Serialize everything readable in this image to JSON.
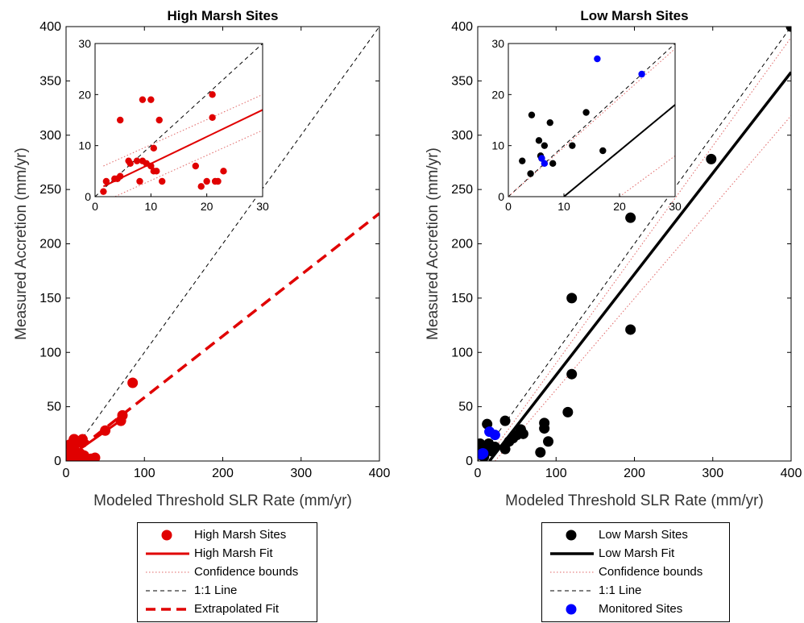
{
  "colors": {
    "high": "#e00000",
    "low": "#000000",
    "monitored": "#0000ff",
    "bounds": "#e06666",
    "oneone": "#000000"
  },
  "axes_labels": {
    "xlabel": "Modeled Threshold SLR Rate (mm/yr)",
    "ylabel": "Measured Accretion (mm/yr)"
  },
  "chart_data": [
    {
      "id": "high",
      "type": "scatter",
      "title": "High Marsh Sites",
      "xlabel": "Modeled Threshold SLR Rate (mm/yr)",
      "ylabel": "Measured Accretion (mm/yr)",
      "xlim": [
        0,
        400
      ],
      "ylim": [
        0,
        400
      ],
      "xticks": [
        0,
        100,
        200,
        300,
        400
      ],
      "yticks": [
        0,
        50,
        100,
        150,
        200,
        250,
        300,
        350,
        400
      ],
      "grid": false,
      "series": [
        {
          "name": "High Marsh Sites",
          "kind": "points",
          "color": "#e00000",
          "x": [
            1.5,
            2,
            3.5,
            4,
            4.5,
            5,
            6,
            7.5,
            8,
            8.5,
            9,
            10,
            10,
            10.5,
            11,
            11,
            11.5,
            12,
            18,
            19,
            20,
            21,
            21,
            21.5,
            22,
            23,
            32,
            37,
            50,
            70,
            72,
            85
          ],
          "y": [
            1,
            4,
            5,
            5,
            15,
            6,
            8,
            7,
            4,
            7,
            7,
            6,
            20,
            20,
            9,
            7,
            15,
            3,
            7,
            2,
            3,
            17,
            20,
            3,
            3,
            5,
            2,
            3,
            28,
            37,
            42,
            72
          ]
        },
        {
          "name": "High Marsh Fit",
          "kind": "line",
          "style": "solid",
          "x": [
            0,
            75
          ],
          "y": [
            2,
            40
          ]
        },
        {
          "name": "Extrapolated Fit",
          "kind": "line",
          "style": "dashed",
          "x": [
            0,
            400
          ],
          "y": [
            2,
            228
          ]
        },
        {
          "name": "1:1 Line",
          "kind": "line",
          "style": "thin-dashed",
          "x": [
            0,
            400
          ],
          "y": [
            0,
            400
          ]
        }
      ],
      "inset": {
        "xlim": [
          0,
          30
        ],
        "ylim": [
          0,
          30
        ],
        "xticks": [
          0,
          10,
          20,
          30
        ],
        "yticks": [
          0,
          10,
          20,
          30
        ],
        "points_x": [
          1.5,
          2,
          3.5,
          4,
          4.5,
          4.5,
          6,
          7.5,
          8,
          8.5,
          8.5,
          10,
          10,
          10.5,
          10.5,
          11,
          11.5,
          12,
          18,
          19,
          20,
          21,
          21,
          21.5,
          22,
          23,
          6.3,
          9.2
        ],
        "points_y": [
          1,
          3,
          3.5,
          3.5,
          4,
          15,
          7,
          7,
          3,
          7,
          19,
          6,
          19,
          9.5,
          5,
          5,
          15,
          3,
          6,
          2,
          3,
          15.5,
          20,
          3,
          3,
          5,
          6.5,
          6.5
        ],
        "fit": {
          "x": [
            1.5,
            30
          ],
          "y": [
            2,
            17
          ]
        },
        "upper_bound": {
          "x": [
            1.5,
            30
          ],
          "y": [
            6,
            20
          ]
        },
        "lower_bound": {
          "x": [
            1.5,
            30
          ],
          "y": [
            -1,
            13
          ]
        },
        "oneone": {
          "x": [
            0,
            30
          ],
          "y": [
            0,
            30
          ]
        }
      }
    },
    {
      "id": "low",
      "type": "scatter",
      "title": "Low Marsh Sites",
      "xlabel": "Modeled Threshold SLR Rate (mm/yr)",
      "ylabel": "Measured Accretion (mm/yr)",
      "xlim": [
        0,
        400
      ],
      "ylim": [
        0,
        400
      ],
      "xticks": [
        0,
        100,
        200,
        300,
        400
      ],
      "yticks": [
        0,
        50,
        100,
        150,
        200,
        250,
        300,
        350,
        400
      ],
      "grid": false,
      "series": [
        {
          "name": "Low Marsh Sites",
          "kind": "points",
          "color": "#000000",
          "x": [
            3,
            4,
            5,
            6,
            8,
            10,
            12,
            14,
            18,
            22,
            35,
            35,
            40,
            45,
            50,
            55,
            58,
            80,
            85,
            85,
            90,
            115,
            120,
            120,
            195,
            195,
            298,
            400
          ],
          "y": [
            16,
            7,
            8,
            5,
            4,
            12,
            34,
            16,
            9,
            13,
            37,
            11,
            18,
            21,
            24,
            29,
            25,
            8,
            30,
            35,
            18,
            45,
            150,
            80,
            224,
            121,
            278,
            400
          ]
        },
        {
          "name": "Monitored Sites",
          "kind": "points",
          "color": "#0000ff",
          "x": [
            5,
            6,
            7,
            15,
            22
          ],
          "y": [
            6,
            7,
            7,
            27,
            24
          ]
        },
        {
          "name": "Low Marsh Fit",
          "kind": "line",
          "style": "solid",
          "x": [
            15,
            400
          ],
          "y": [
            0,
            358
          ]
        },
        {
          "name": "Confidence bounds",
          "kind": "line",
          "style": "dotted",
          "x": [
            10,
            400
          ],
          "y": [
            0,
            390
          ]
        },
        {
          "name": "Confidence bounds",
          "kind": "line",
          "style": "dotted",
          "x": [
            22,
            400
          ],
          "y": [
            0,
            318
          ]
        },
        {
          "name": "1:1 Line",
          "kind": "line",
          "style": "thin-dashed",
          "x": [
            0,
            400
          ],
          "y": [
            0,
            400
          ]
        }
      ],
      "inset": {
        "xlim": [
          0,
          30
        ],
        "ylim": [
          0,
          30
        ],
        "xticks": [
          0,
          10,
          20,
          30
        ],
        "yticks": [
          0,
          10,
          20,
          30
        ],
        "points_x": [
          2.5,
          4,
          4.2,
          5.5,
          5.8,
          6,
          6.5,
          7.5,
          8,
          11.5,
          14,
          17
        ],
        "points_y": [
          7,
          4.5,
          16,
          11,
          8,
          7.5,
          10,
          14.5,
          6.5,
          10,
          16.5,
          9
        ],
        "blue_x": [
          6,
          6.5,
          16,
          24
        ],
        "blue_y": [
          7.5,
          6.5,
          27,
          24
        ],
        "fit": {
          "x": [
            10,
            30
          ],
          "y": [
            0,
            18
          ]
        },
        "upper_bound": {
          "x": [
            0,
            30
          ],
          "y": [
            0,
            29
          ]
        },
        "lower_bound": {
          "x": [
            20,
            30
          ],
          "y": [
            0,
            8
          ]
        },
        "oneone": {
          "x": [
            0,
            30
          ],
          "y": [
            0,
            30
          ]
        }
      }
    }
  ],
  "legend_high": {
    "items": [
      {
        "label": "High Marsh Sites",
        "sym": "dot",
        "color": "#e00000"
      },
      {
        "label": "High Marsh Fit",
        "sym": "solid",
        "color": "#e00000"
      },
      {
        "label": "Confidence bounds",
        "sym": "dotted",
        "color": "#e06666"
      },
      {
        "label": "1:1 Line",
        "sym": "thin-dashed",
        "color": "#000000"
      },
      {
        "label": "Extrapolated Fit",
        "sym": "dashed",
        "color": "#e00000"
      }
    ]
  },
  "legend_low": {
    "items": [
      {
        "label": "Low Marsh Sites",
        "sym": "dot",
        "color": "#000000"
      },
      {
        "label": "Low Marsh Fit",
        "sym": "solid-thick",
        "color": "#000000"
      },
      {
        "label": "Confidence bounds",
        "sym": "dotted",
        "color": "#e06666"
      },
      {
        "label": "1:1 Line",
        "sym": "thin-dashed",
        "color": "#000000"
      },
      {
        "label": "Monitored Sites",
        "sym": "dot",
        "color": "#0000ff"
      }
    ]
  }
}
